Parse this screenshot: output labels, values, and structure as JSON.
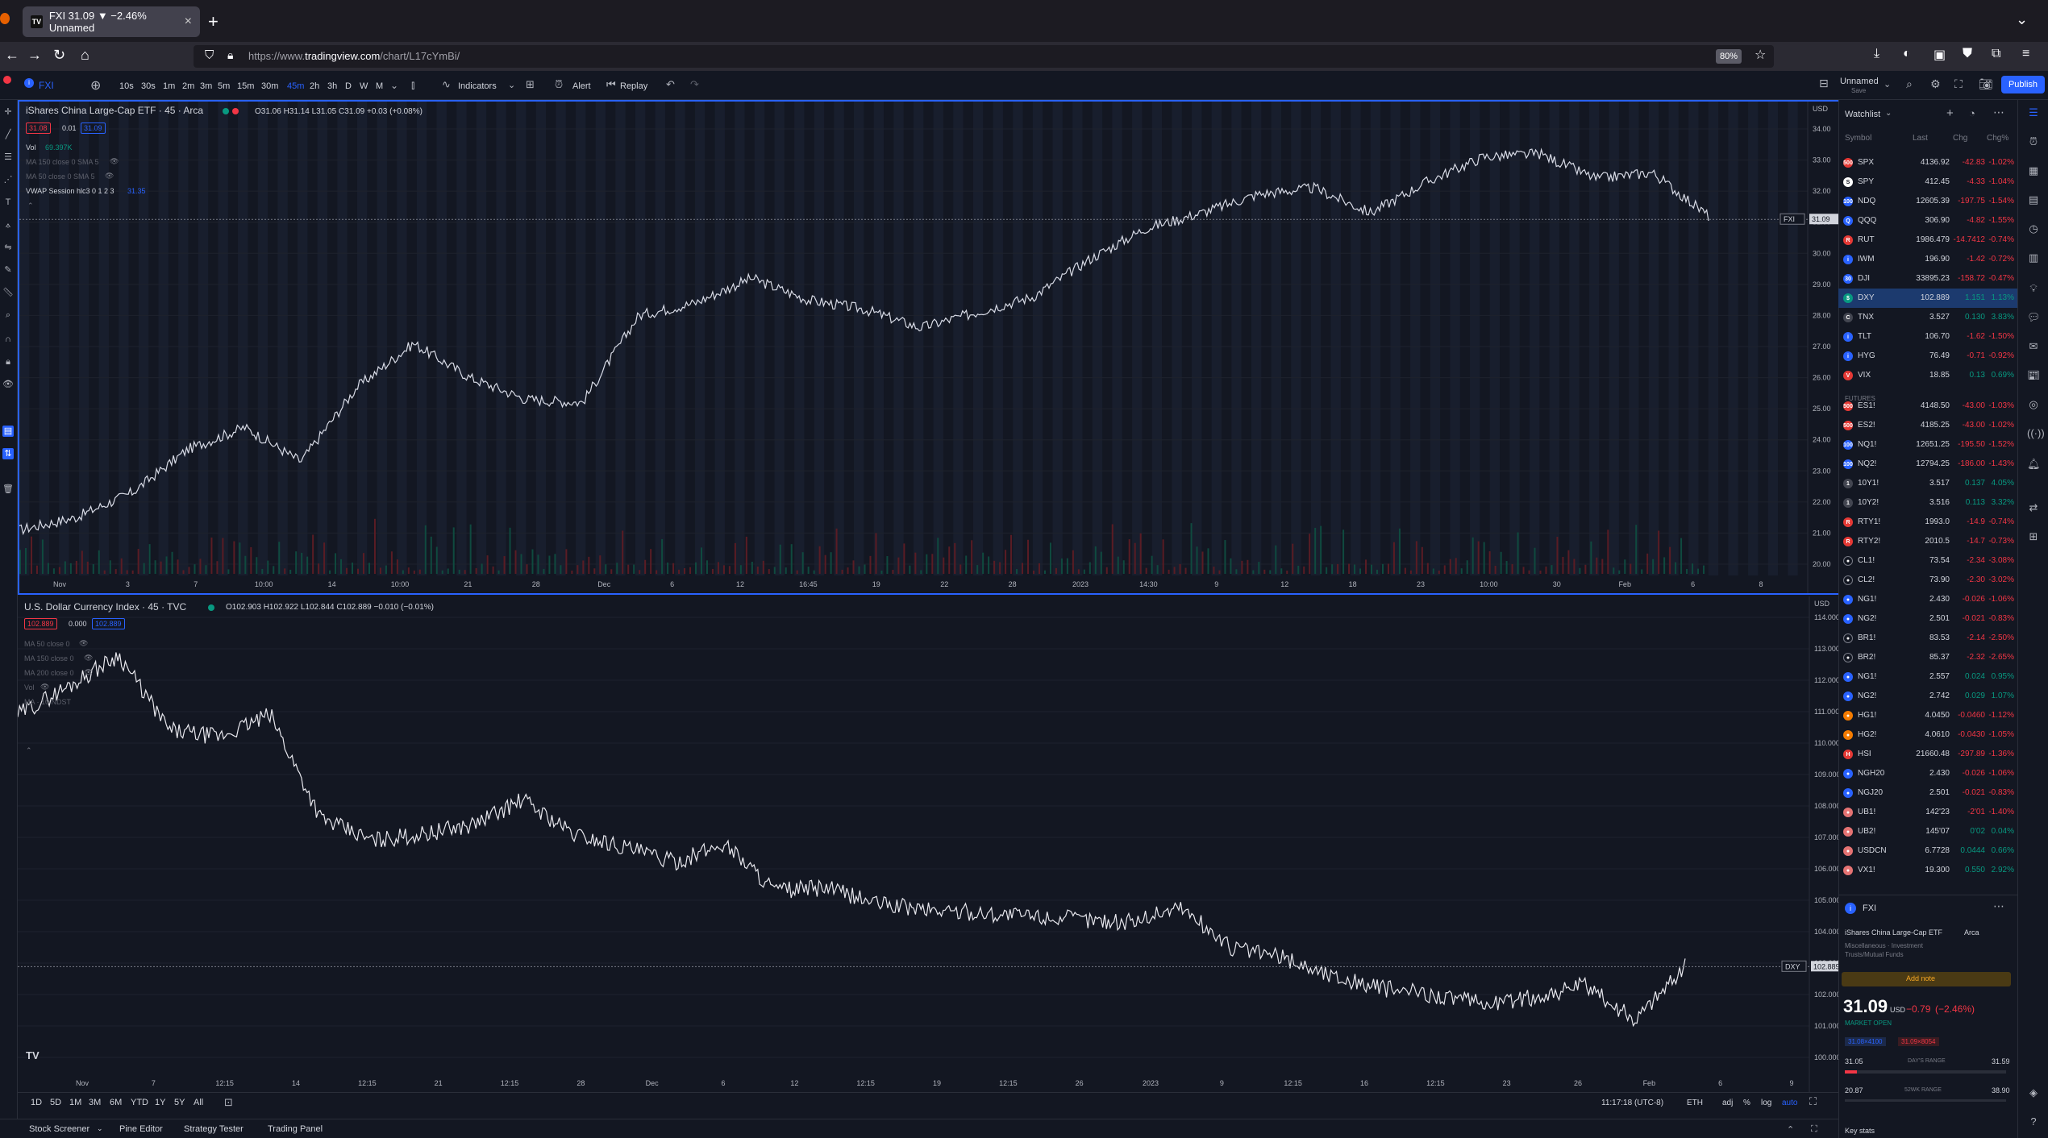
{
  "browser": {
    "tab_title": "FXI 31.09 ▼ −2.46% Unnamed",
    "url_prefix": "https://www.",
    "url_domain": "tradingview.com",
    "url_path": "/chart/L17cYmBi/",
    "zoom": "80%",
    "tab_icon": "tv-logo-icon"
  },
  "toolbar": {
    "symbol": "FXI",
    "timeframes": [
      "10s",
      "30s",
      "1m",
      "2m",
      "3m",
      "5m",
      "15m",
      "30m",
      "45m",
      "2h",
      "3h",
      "D",
      "W",
      "M"
    ],
    "active_timeframe": "45m",
    "indicators_label": "Indicators",
    "alert_label": "Alert",
    "replay_label": "Replay",
    "layout_name": "Unnamed",
    "layout_sub": "Save",
    "publish_label": "Publish"
  },
  "pane1": {
    "title": "iShares China Large-Cap ETF · 45 · Arca",
    "ohlc": "O31.06 H31.14 L31.05 C31.09 +0.03 (+0.08%)",
    "bid": "31.08",
    "spread": "0.01",
    "ask": "31.09",
    "vol_label": "Vol",
    "vol_value": "69.397K",
    "indicators": [
      "MA 150 close 0 SMA 5",
      "MA 50 close 0 SMA 5"
    ],
    "vwap_label": "VWAP Session hlc3 0 1 2 3",
    "vwap_value": "31.35",
    "currency": "USD",
    "last_symbol": "FXI",
    "last_price": "31.09",
    "y_ticks": [
      "34.00",
      "33.00",
      "32.00",
      "31.00",
      "30.00",
      "29.00",
      "28.00",
      "27.00",
      "26.00",
      "25.00",
      "24.00",
      "23.00",
      "22.00",
      "21.00",
      "20.00"
    ],
    "x_ticks": [
      "Nov",
      "3",
      "7",
      "10:00",
      "14",
      "10:00",
      "21",
      "28",
      "Dec",
      "6",
      "12",
      "16:45",
      "19",
      "22",
      "28",
      "2023",
      "14:30",
      "9",
      "12",
      "18",
      "23",
      "10:00",
      "30",
      "Feb",
      "6",
      "8"
    ]
  },
  "pane2": {
    "title": "U.S. Dollar Currency Index · 45 · TVC",
    "ohlc": "O102.903 H102.922 L102.844 C102.889 −0.010 (−0.01%)",
    "bid": "102.889",
    "spread": "0.000",
    "ask": "102.889",
    "indicators": [
      "MA 50 close 0",
      "MA 150 close 0",
      "MA 200 close 0",
      "Vol",
      "MA · 10 NDST"
    ],
    "currency": "USD",
    "last_symbol": "DXY",
    "last_price": "102.889",
    "y_ticks": [
      "114.000",
      "113.000",
      "112.000",
      "111.000",
      "110.000",
      "109.000",
      "108.000",
      "107.000",
      "106.000",
      "105.000",
      "104.000",
      "103.000",
      "102.000",
      "101.000",
      "100.000"
    ],
    "x_ticks": [
      "Nov",
      "7",
      "12:15",
      "14",
      "12:15",
      "21",
      "12:15",
      "28",
      "Dec",
      "6",
      "12",
      "12:15",
      "19",
      "12:15",
      "26",
      "2023",
      "9",
      "12:15",
      "16",
      "12:15",
      "23",
      "26",
      "Feb",
      "6",
      "9"
    ]
  },
  "range_bar": {
    "ranges": [
      "1D",
      "5D",
      "1M",
      "3M",
      "6M",
      "YTD",
      "1Y",
      "5Y",
      "All"
    ],
    "time": "11:17:18 (UTC-8)",
    "session": "ETH",
    "adj": "adj",
    "pct": "%",
    "log": "log",
    "auto": "auto"
  },
  "bottom_tabs": [
    "Stock Screener",
    "Pine Editor",
    "Strategy Tester",
    "Trading Panel"
  ],
  "watchlist": {
    "title": "Watchlist",
    "headers": [
      "Symbol",
      "Last",
      "Chg",
      "Chg%"
    ],
    "futures_label": "FUTURES",
    "rows": [
      {
        "sym": "SPX",
        "last": "4136.92",
        "chg": "-42.83",
        "pct": "-1.02%",
        "dir": "neg",
        "icon": "500",
        "col": "#e53935"
      },
      {
        "sym": "SPY",
        "last": "412.45",
        "chg": "-4.33",
        "pct": "-1.04%",
        "dir": "neg",
        "icon": "S",
        "col": "#ffffff"
      },
      {
        "sym": "NDQ",
        "last": "12605.39",
        "chg": "-197.75",
        "pct": "-1.54%",
        "dir": "neg",
        "icon": "100",
        "col": "#2962ff"
      },
      {
        "sym": "QQQ",
        "last": "306.90",
        "chg": "-4.82",
        "pct": "-1.55%",
        "dir": "neg",
        "icon": "Q",
        "col": "#2962ff"
      },
      {
        "sym": "RUT",
        "last": "1986.479",
        "chg": "-14.7412",
        "pct": "-0.74%",
        "dir": "neg",
        "icon": "R",
        "col": "#e53935"
      },
      {
        "sym": "IWM",
        "last": "196.90",
        "chg": "-1.42",
        "pct": "-0.72%",
        "dir": "neg",
        "icon": "i",
        "col": "#2962ff"
      },
      {
        "sym": "DJI",
        "last": "33895.23",
        "chg": "-158.72",
        "pct": "-0.47%",
        "dir": "neg",
        "icon": "30",
        "col": "#2962ff"
      },
      {
        "sym": "DXY",
        "last": "102.889",
        "chg": "1.151",
        "pct": "1.13%",
        "dir": "pos",
        "icon": "$",
        "col": "#089981",
        "sel": true
      },
      {
        "sym": "TNX",
        "last": "3.527",
        "chg": "0.130",
        "pct": "3.83%",
        "dir": "pos",
        "icon": "C",
        "col": "#434651"
      },
      {
        "sym": "TLT",
        "last": "106.70",
        "chg": "-1.62",
        "pct": "-1.50%",
        "dir": "neg",
        "icon": "i",
        "col": "#2962ff"
      },
      {
        "sym": "HYG",
        "last": "76.49",
        "chg": "-0.71",
        "pct": "-0.92%",
        "dir": "neg",
        "icon": "i",
        "col": "#2962ff"
      },
      {
        "sym": "VIX",
        "last": "18.85",
        "chg": "0.13",
        "pct": "0.69%",
        "dir": "pos",
        "icon": "V",
        "col": "#e53935"
      },
      {
        "sym": "ES1!",
        "last": "4148.50",
        "chg": "-43.00",
        "pct": "-1.03%",
        "dir": "neg",
        "icon": "500",
        "col": "#e53935"
      },
      {
        "sym": "ES2!",
        "last": "4185.25",
        "chg": "-43.00",
        "pct": "-1.02%",
        "dir": "neg",
        "icon": "500",
        "col": "#e53935"
      },
      {
        "sym": "NQ1!",
        "last": "12651.25",
        "chg": "-195.50",
        "pct": "-1.52%",
        "dir": "neg",
        "icon": "100",
        "col": "#2962ff"
      },
      {
        "sym": "NQ2!",
        "last": "12794.25",
        "chg": "-186.00",
        "pct": "-1.43%",
        "dir": "neg",
        "icon": "100",
        "col": "#2962ff"
      },
      {
        "sym": "10Y1!",
        "last": "3.517",
        "chg": "0.137",
        "pct": "4.05%",
        "dir": "pos",
        "icon": "1",
        "col": "#434651"
      },
      {
        "sym": "10Y2!",
        "last": "3.516",
        "chg": "0.113",
        "pct": "3.32%",
        "dir": "pos",
        "icon": "1",
        "col": "#434651"
      },
      {
        "sym": "RTY1!",
        "last": "1993.0",
        "chg": "-14.9",
        "pct": "-0.74%",
        "dir": "neg",
        "icon": "R",
        "col": "#e53935"
      },
      {
        "sym": "RTY2!",
        "last": "2010.5",
        "chg": "-14.7",
        "pct": "-0.73%",
        "dir": "neg",
        "icon": "R",
        "col": "#e53935"
      },
      {
        "sym": "CL1!",
        "last": "73.54",
        "chg": "-2.34",
        "pct": "-3.08%",
        "dir": "neg",
        "icon": "●",
        "col": "#131722"
      },
      {
        "sym": "CL2!",
        "last": "73.90",
        "chg": "-2.30",
        "pct": "-3.02%",
        "dir": "neg",
        "icon": "●",
        "col": "#131722"
      },
      {
        "sym": "NG1!",
        "last": "2.430",
        "chg": "-0.026",
        "pct": "-1.06%",
        "dir": "neg",
        "icon": "●",
        "col": "#2962ff"
      },
      {
        "sym": "NG2!",
        "last": "2.501",
        "chg": "-0.021",
        "pct": "-0.83%",
        "dir": "neg",
        "icon": "●",
        "col": "#2962ff"
      },
      {
        "sym": "BR1!",
        "last": "83.53",
        "chg": "-2.14",
        "pct": "-2.50%",
        "dir": "neg",
        "icon": "●",
        "col": "#131722"
      },
      {
        "sym": "BR2!",
        "last": "85.37",
        "chg": "-2.32",
        "pct": "-2.65%",
        "dir": "neg",
        "icon": "●",
        "col": "#131722"
      },
      {
        "sym": "NG1!",
        "last": "2.557",
        "chg": "0.024",
        "pct": "0.95%",
        "dir": "pos",
        "icon": "●",
        "col": "#2962ff"
      },
      {
        "sym": "NG2!",
        "last": "2.742",
        "chg": "0.029",
        "pct": "1.07%",
        "dir": "pos",
        "icon": "●",
        "col": "#2962ff"
      },
      {
        "sym": "HG1!",
        "last": "4.0450",
        "chg": "-0.0460",
        "pct": "-1.12%",
        "dir": "neg",
        "icon": "●",
        "col": "#f57c00"
      },
      {
        "sym": "HG2!",
        "last": "4.0610",
        "chg": "-0.0430",
        "pct": "-1.05%",
        "dir": "neg",
        "icon": "●",
        "col": "#f57c00"
      },
      {
        "sym": "HSI",
        "last": "21660.48",
        "chg": "-297.89",
        "pct": "-1.36%",
        "dir": "neg",
        "icon": "H",
        "col": "#e53935"
      },
      {
        "sym": "NGH20",
        "last": "2.430",
        "chg": "-0.026",
        "pct": "-1.06%",
        "dir": "neg",
        "icon": "●",
        "col": "#2962ff"
      },
      {
        "sym": "NGJ20",
        "last": "2.501",
        "chg": "-0.021",
        "pct": "-0.83%",
        "dir": "neg",
        "icon": "●",
        "col": "#2962ff"
      },
      {
        "sym": "UB1!",
        "last": "142'23",
        "chg": "-2'01",
        "pct": "-1.40%",
        "dir": "neg",
        "icon": "●",
        "col": "#e57373"
      },
      {
        "sym": "UB2!",
        "last": "145'07",
        "chg": "0'02",
        "pct": "0.04%",
        "dir": "pos",
        "icon": "●",
        "col": "#e57373"
      },
      {
        "sym": "USDCN",
        "last": "6.7728",
        "chg": "0.0444",
        "pct": "0.66%",
        "dir": "pos",
        "icon": "●",
        "col": "#e57373"
      },
      {
        "sym": "VX1!",
        "last": "19.300",
        "chg": "0.550",
        "pct": "2.92%",
        "dir": "pos",
        "icon": "●",
        "col": "#e57373"
      }
    ]
  },
  "details": {
    "symbol": "FXI",
    "name": "iShares China Large-Cap ETF",
    "exchange": "Arca",
    "category": "Miscellaneous · Investment Trusts/Mutual Funds",
    "add_note": "Add note",
    "price": "31.09",
    "currency": "USD",
    "change": "−0.79",
    "change_pct": "(−2.46%)",
    "market_status": "MARKET OPEN",
    "pill_a": "31.08×4100",
    "pill_b": "31.09×8054",
    "day_low": "31.05",
    "day_label": "DAY'S RANGE",
    "day_high": "31.59",
    "week_low": "20.87",
    "week_label": "52WK RANGE",
    "week_high": "38.90",
    "key_stats": "Key stats"
  },
  "colors": {
    "bg": "#131722",
    "accent": "#2962ff",
    "up": "#089981",
    "down": "#f23645"
  }
}
